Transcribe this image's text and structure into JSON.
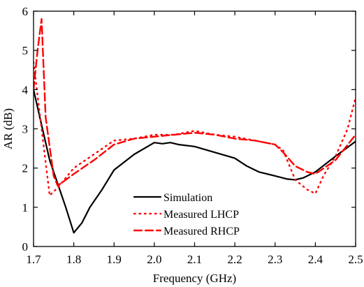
{
  "chart_data": {
    "type": "line",
    "xlabel": "Frequency (GHz)",
    "ylabel": "AR (dB)",
    "xlim": [
      1.7,
      2.5
    ],
    "ylim": [
      0,
      6
    ],
    "xticks": [
      "1.7",
      "1.8",
      "1.9",
      "2.0",
      "2.1",
      "2.2",
      "2.3",
      "2.4",
      "2.5"
    ],
    "yticks": [
      "0",
      "1",
      "2",
      "3",
      "4",
      "5",
      "6"
    ],
    "grid": false,
    "legend_position": "bottom-center",
    "series": [
      {
        "name": "Simulation",
        "color": "#000000",
        "style": "solid",
        "x": [
          1.7,
          1.72,
          1.74,
          1.76,
          1.78,
          1.8,
          1.82,
          1.84,
          1.87,
          1.9,
          1.95,
          2.0,
          2.02,
          2.04,
          2.06,
          2.1,
          2.15,
          2.2,
          2.23,
          2.26,
          2.3,
          2.33,
          2.35,
          2.37,
          2.4,
          2.45,
          2.5
        ],
        "y": [
          4.0,
          3.1,
          2.2,
          1.6,
          1.0,
          0.35,
          0.6,
          1.0,
          1.45,
          1.95,
          2.35,
          2.65,
          2.62,
          2.65,
          2.6,
          2.55,
          2.4,
          2.25,
          2.05,
          1.9,
          1.8,
          1.72,
          1.7,
          1.75,
          1.9,
          2.3,
          2.68
        ]
      },
      {
        "name": "Measured LHCP",
        "color": "#ff0000",
        "style": "dotted",
        "x": [
          1.7,
          1.72,
          1.74,
          1.76,
          1.8,
          1.85,
          1.9,
          1.95,
          2.0,
          2.05,
          2.1,
          2.15,
          2.2,
          2.25,
          2.3,
          2.32,
          2.35,
          2.38,
          2.4,
          2.42,
          2.45,
          2.48,
          2.5
        ],
        "y": [
          4.7,
          3.0,
          1.3,
          1.5,
          2.0,
          2.35,
          2.7,
          2.75,
          2.85,
          2.85,
          2.95,
          2.85,
          2.8,
          2.7,
          2.6,
          2.45,
          1.7,
          1.45,
          1.35,
          1.8,
          2.3,
          3.0,
          3.8
        ]
      },
      {
        "name": "Measured RHCP",
        "color": "#ff0000",
        "style": "dashed",
        "x": [
          1.7,
          1.71,
          1.72,
          1.73,
          1.75,
          1.76,
          1.78,
          1.8,
          1.85,
          1.9,
          1.95,
          2.0,
          2.05,
          2.1,
          2.15,
          2.2,
          2.25,
          2.3,
          2.32,
          2.35,
          2.38,
          2.4,
          2.45,
          2.5
        ],
        "y": [
          4.0,
          5.0,
          5.8,
          3.3,
          1.8,
          1.55,
          1.7,
          1.85,
          2.2,
          2.6,
          2.75,
          2.8,
          2.85,
          2.9,
          2.85,
          2.75,
          2.7,
          2.6,
          2.4,
          2.05,
          1.9,
          1.85,
          2.2,
          2.85
        ]
      }
    ]
  }
}
